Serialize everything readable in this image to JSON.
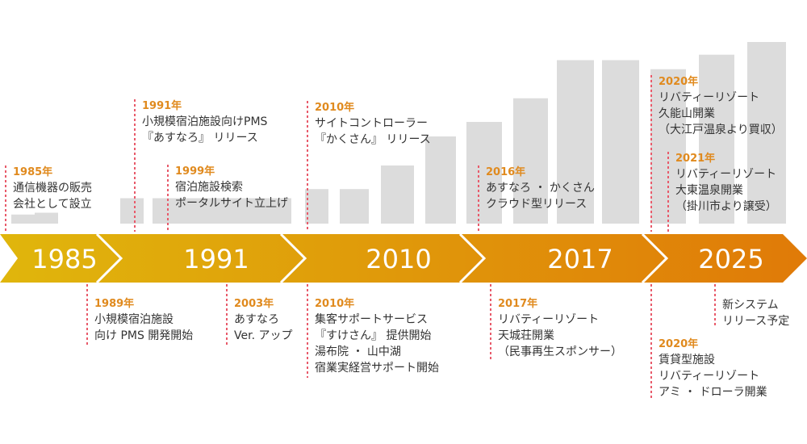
{
  "colors": {
    "bar": "#DCDCDC",
    "year_accent": "#E08A1E",
    "dotted_line": "#E85A6A",
    "band_start": "#E0B60C",
    "band_end": "#E07A08",
    "band_text": "#FFFFFF"
  },
  "bar_levels": [
    5,
    6,
    14,
    14,
    14,
    14,
    14,
    14,
    14,
    19,
    19,
    32,
    48,
    56,
    69,
    90,
    90,
    85,
    93,
    100
  ],
  "eras": [
    "1985",
    "1991",
    "2010",
    "2017",
    "2025"
  ],
  "events": [
    {
      "year": "1985年",
      "lines": [
        "通信機器の販売",
        "会社として設立"
      ]
    },
    {
      "year": "1991年",
      "lines": [
        "小規模宿泊施設向けPMS",
        "『あすなろ』 リリース"
      ]
    },
    {
      "year": "1999年",
      "lines": [
        "宿泊施設検索",
        "ポータルサイト立上げ"
      ]
    },
    {
      "year": "2010年",
      "lines": [
        "サイトコントローラー",
        "『かくさん』 リリース"
      ]
    },
    {
      "year": "2016年",
      "lines": [
        "あすなろ ・ かくさん",
        "クラウド型リリース"
      ]
    },
    {
      "year": "2020年",
      "lines": [
        "リバティーリゾート",
        "久能山開業",
        "（大江戸温泉より買収）"
      ]
    },
    {
      "year": "2021年",
      "lines": [
        "リバティーリゾート",
        "大東温泉開業",
        "（掛川市より譲受）"
      ]
    },
    {
      "year": "1989年",
      "lines": [
        "小規模宿泊施設",
        "向け PMS 開発開始"
      ]
    },
    {
      "year": "2003年",
      "lines": [
        "あすなろ",
        "Ver. アップ"
      ]
    },
    {
      "year": "2010年",
      "lines": [
        "集客サポートサービス",
        "『すけさん』 提供開始",
        "湯布院 ・ 山中湖",
        "宿業実経営サポート開始"
      ]
    },
    {
      "year": "2017年",
      "lines": [
        "リバティーリゾート",
        "天城荘開業",
        "（民事再生スポンサー）"
      ]
    },
    {
      "year": "",
      "lines": [
        "新システム",
        "リリース予定"
      ]
    },
    {
      "year": "2020年",
      "lines": [
        "賃貸型施設",
        "リバティーリゾート",
        "アミ ・ ドローラ開業"
      ]
    }
  ]
}
